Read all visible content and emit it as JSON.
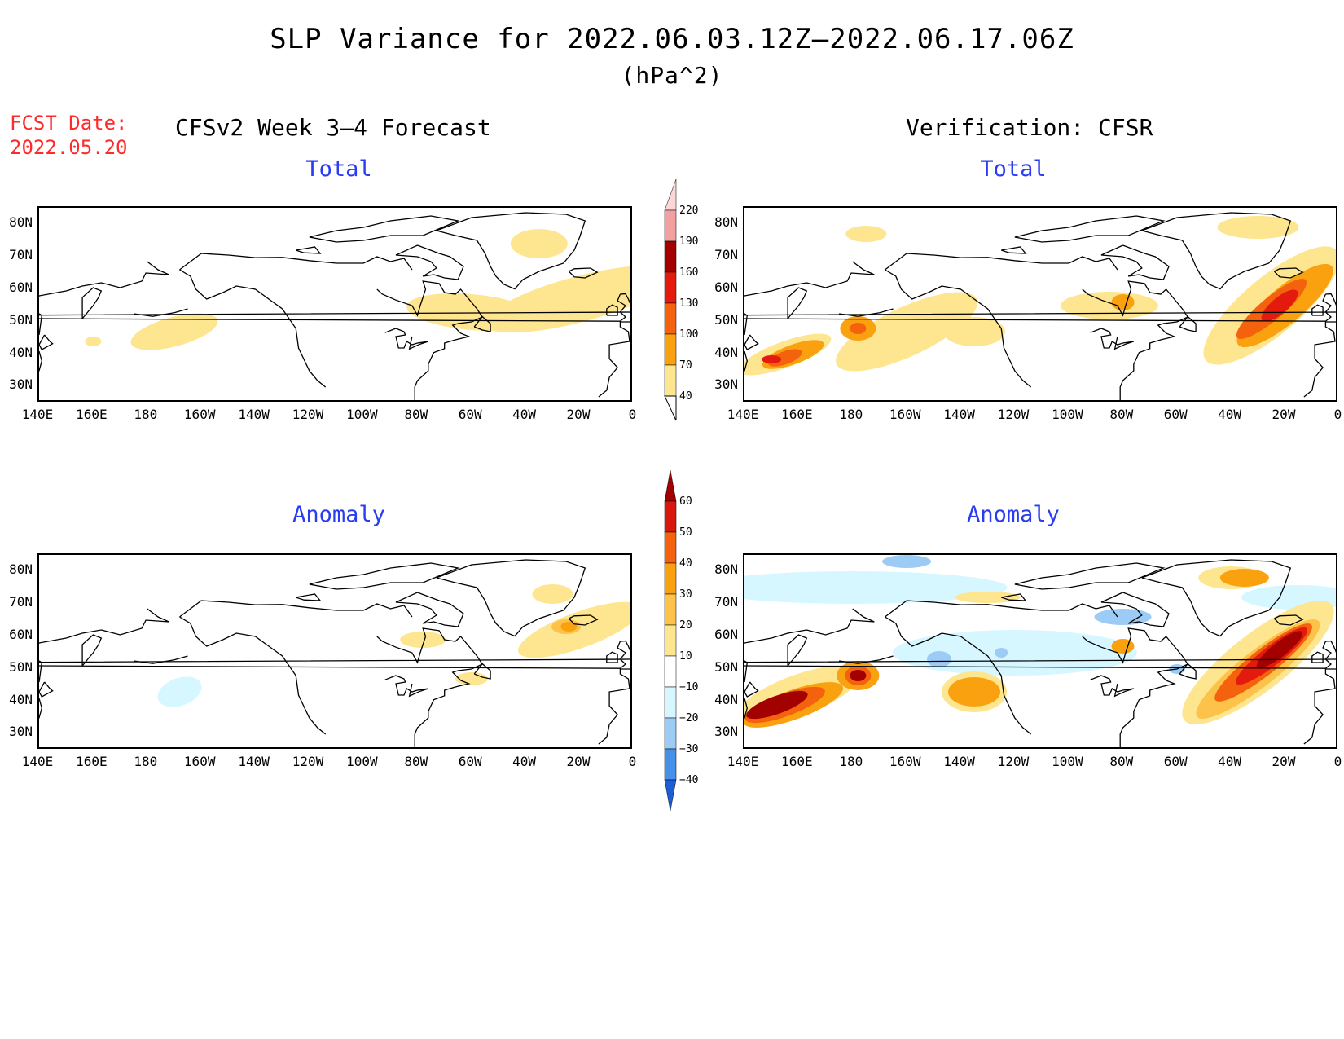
{
  "title": "SLP Variance for 2022.06.03.12Z—2022.06.17.06Z",
  "units": "(hPa^2)",
  "fcst_label": "FCST Date:",
  "fcst_date": "2022.05.20",
  "left_header": "CFSv2 Week 3—4 Forecast",
  "right_header": "Verification: CFSR",
  "panels": {
    "tl": {
      "title": "Total"
    },
    "tr": {
      "title": "Total"
    },
    "bl": {
      "title": "Anomaly"
    },
    "br": {
      "title": "Anomaly"
    }
  },
  "lat_labels": [
    "80N",
    "70N",
    "60N",
    "50N",
    "40N",
    "30N"
  ],
  "lon_labels": [
    "140E",
    "160E",
    "180",
    "160W",
    "140W",
    "120W",
    "100W",
    "80W",
    "60W",
    "40W",
    "20W",
    "0"
  ],
  "total_colorbar": {
    "levels": [
      "40",
      "70",
      "100",
      "130",
      "160",
      "190",
      "220"
    ],
    "colors": [
      "#fde68f",
      "#f9a10f",
      "#f5620e",
      "#e31a0d",
      "#a30000",
      "#f2a0a0",
      "#fbd7d7"
    ]
  },
  "anomaly_colorbar": {
    "levels": [
      "60",
      "50",
      "40",
      "30",
      "20",
      "10",
      "−10",
      "−20",
      "−30",
      "−40"
    ],
    "colors": [
      "#a30000",
      "#d8180d",
      "#f5620e",
      "#f9a10f",
      "#fdc24a",
      "#fde68f",
      "#ffffff",
      "#d6f7ff",
      "#9ccbf5",
      "#4590e8",
      "#1a5fd8"
    ]
  },
  "chart_data": {
    "type": "heatmap",
    "title": "SLP Variance for 2022.06.03.12Z—2022.06.17.06Z",
    "units": "hPa^2",
    "x_axis": "longitude 140E to 0",
    "y_axis": "latitude 25N to 85N",
    "panels": [
      {
        "name": "CFSv2 Week 3-4 Forecast Total",
        "features": [
          {
            "lon": -10,
            "lat": 72,
            "value": 50
          },
          {
            "lon": -50,
            "lat": 55,
            "value": 55
          },
          {
            "lon": -170,
            "lat": 47,
            "value": 45
          },
          {
            "lon": -20,
            "lat": 62,
            "value": 50
          }
        ]
      },
      {
        "name": "CFSv2 Week 3-4 Forecast Anomaly",
        "features": [
          {
            "lon": -25,
            "lat": 62,
            "value": 25
          },
          {
            "lon": -80,
            "lat": 59,
            "value": 12
          },
          {
            "lon": -170,
            "lat": 43,
            "value": -12
          }
        ]
      },
      {
        "name": "Verification CFSR Total",
        "features": [
          {
            "lon": 150,
            "lat": 39,
            "value": 170
          },
          {
            "lon": -178,
            "lat": 48,
            "value": 130
          },
          {
            "lon": -25,
            "lat": 55,
            "value": 150
          },
          {
            "lon": -80,
            "lat": 56,
            "value": 100
          }
        ]
      },
      {
        "name": "Verification CFSR Anomaly",
        "features": [
          {
            "lon": 150,
            "lat": 39,
            "value": 60
          },
          {
            "lon": -177,
            "lat": 48,
            "value": 60
          },
          {
            "lon": -30,
            "lat": 50,
            "value": 60
          },
          {
            "lon": -135,
            "lat": 42,
            "value": 35
          },
          {
            "lon": -25,
            "lat": 76,
            "value": -15
          },
          {
            "lon": -80,
            "lat": 66,
            "value": -20
          }
        ]
      }
    ]
  }
}
